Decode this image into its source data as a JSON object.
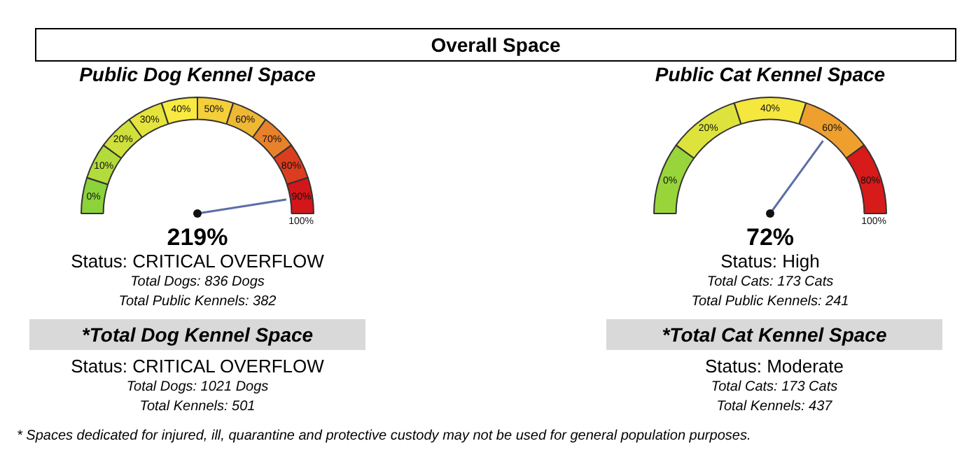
{
  "chart_data": [
    {
      "type": "other",
      "title": "Overall Space",
      "annotations": [
        "* Spaces dedicated for injured, ill, quarantine and protective custody may not be used for general population purposes."
      ]
    },
    {
      "type": "donut",
      "title": "Public Dog Kennel Space",
      "categories": [
        "0%",
        "10%",
        "20%",
        "30%",
        "40%",
        "50%",
        "60%",
        "70%",
        "80%",
        "90%"
      ],
      "values": [
        10,
        10,
        10,
        10,
        10,
        10,
        10,
        10,
        10,
        10
      ],
      "colors": [
        "#8cd23a",
        "#b3db3b",
        "#cfe03c",
        "#e4e43c",
        "#f8ea40",
        "#f5cf3a",
        "#efb834",
        "#e8812b",
        "#dc3d1f",
        "#d2161a"
      ],
      "needle": "90%",
      "legend": false,
      "annotations": [
        "219%",
        "Status: CRITICAL OVERFLOW",
        "Total Dogs:  836 Dogs",
        "Total Public Kennels: 382",
        "100%"
      ]
    },
    {
      "type": "other",
      "title": "*Total Dog Kennel Space",
      "annotations": [
        "Status: CRITICAL OVERFLOW",
        "Total Dogs:  1021 Dogs",
        "Total Kennels: 501"
      ]
    },
    {
      "type": "donut",
      "title": "Public Cat Kennel Space",
      "categories": [
        "0%",
        "20%",
        "40%",
        "60%",
        "80%"
      ],
      "values": [
        20,
        20,
        20,
        20,
        20
      ],
      "colors": [
        "#98d53a",
        "#dde33c",
        "#f5e73e",
        "#ee9f2e",
        "#d71a1a"
      ],
      "needle": "60%",
      "legend": false,
      "annotations": [
        "72%",
        "Status: High",
        "Total Cats:  173 Cats",
        "Total Public Kennels: 241",
        "100%"
      ]
    },
    {
      "type": "other",
      "title": "*Total Cat Kennel Space",
      "annotations": [
        "Status: Moderate",
        "Total Cats:  173 Cats",
        "Total Kennels: 437"
      ]
    }
  ]
}
